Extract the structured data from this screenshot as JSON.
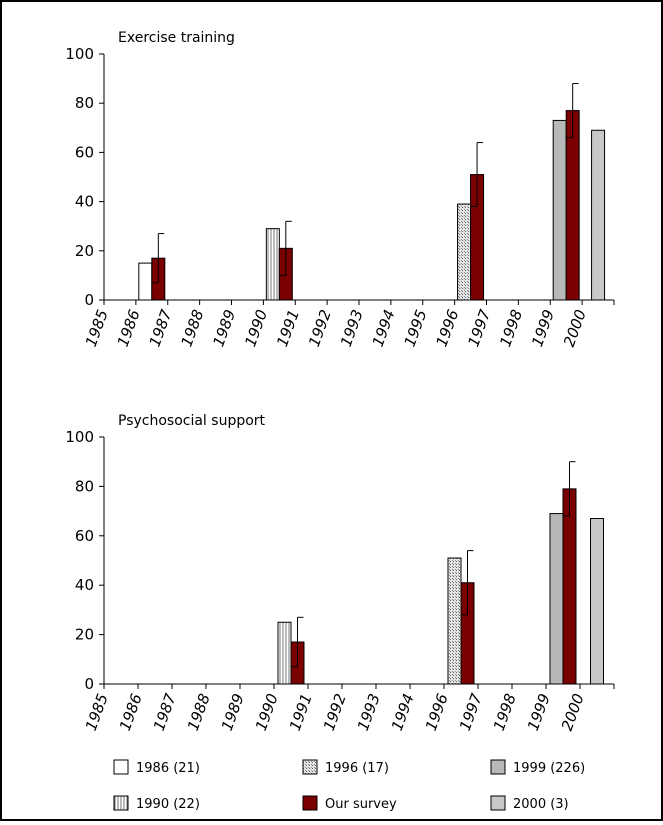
{
  "chart_data": [
    {
      "type": "bar",
      "title": "Exercise training",
      "categories": [
        "1985",
        "1986",
        "1987",
        "1988",
        "1989",
        "1990",
        "1991",
        "1992",
        "1993",
        "1994",
        "1995",
        "1996",
        "1997",
        "1998",
        "1999",
        "2000"
      ],
      "ylim": [
        0,
        100
      ],
      "yticks": [
        0,
        20,
        40,
        60,
        80,
        100
      ],
      "bars": [
        {
          "year": "1986",
          "series": "1986 (21)",
          "value": 15,
          "offset": "left"
        },
        {
          "year": "1986",
          "series": "Our survey",
          "value": 17,
          "error": 10,
          "offset": "right"
        },
        {
          "year": "1990",
          "series": "1990 (22)",
          "value": 29,
          "offset": "left"
        },
        {
          "year": "1990",
          "series": "Our survey",
          "value": 21,
          "error": 11,
          "offset": "right"
        },
        {
          "year": "1996",
          "series": "1996 (17)",
          "value": 39,
          "offset": "left"
        },
        {
          "year": "1996",
          "series": "Our survey",
          "value": 51,
          "error": 13,
          "offset": "right"
        },
        {
          "year": "1999",
          "series": "1999 (226)",
          "value": 73,
          "offset": "left"
        },
        {
          "year": "1999",
          "series": "Our survey",
          "value": 77,
          "error": 11,
          "offset": "right"
        },
        {
          "year": "2000",
          "series": "2000 (3)",
          "value": 69,
          "offset": "center"
        }
      ]
    },
    {
      "type": "bar",
      "title": "Psychosocial support",
      "categories": [
        "1985",
        "1986",
        "1987",
        "1988",
        "1989",
        "1990",
        "1991",
        "1992",
        "1993",
        "1994",
        "1996",
        "1997",
        "1998",
        "1999",
        "2000"
      ],
      "ylim": [
        0,
        100
      ],
      "yticks": [
        0,
        20,
        40,
        60,
        80,
        100
      ],
      "bars": [
        {
          "year": "1990",
          "series": "1990 (22)",
          "value": 25,
          "offset": "left"
        },
        {
          "year": "1990",
          "series": "Our survey",
          "value": 17,
          "error": 10,
          "offset": "right"
        },
        {
          "year": "1996",
          "series": "1996 (17)",
          "value": 51,
          "offset": "left"
        },
        {
          "year": "1996",
          "series": "Our survey",
          "value": 41,
          "error": 13,
          "offset": "right"
        },
        {
          "year": "1999",
          "series": "1999 (226)",
          "value": 69,
          "offset": "left"
        },
        {
          "year": "1999",
          "series": "Our survey",
          "value": 79,
          "error": 11,
          "offset": "right"
        },
        {
          "year": "2000",
          "series": "2000 (3)",
          "value": 67,
          "offset": "center"
        }
      ]
    }
  ],
  "legend": [
    {
      "label": "1986 (21)",
      "style": "white"
    },
    {
      "label": "1996 (17)",
      "style": "dotted"
    },
    {
      "label": "1999 (226)",
      "style": "gray"
    },
    {
      "label": "1990 (22)",
      "style": "vlines"
    },
    {
      "label": "Our survey",
      "style": "darkred"
    },
    {
      "label": "2000 (3)",
      "style": "lightgray"
    }
  ],
  "colors": {
    "white": "#ffffff",
    "dotted": "#d8d8d8",
    "gray": "#b8b8b8",
    "vlines": "#ffffff",
    "darkred": "#7a0000",
    "lightgray": "#c8c8c8"
  },
  "series_style": {
    "1986 (21)": "white",
    "1990 (22)": "vlines",
    "1996 (17)": "dotted",
    "1999 (226)": "gray",
    "Our survey": "darkred",
    "2000 (3)": "lightgray"
  }
}
